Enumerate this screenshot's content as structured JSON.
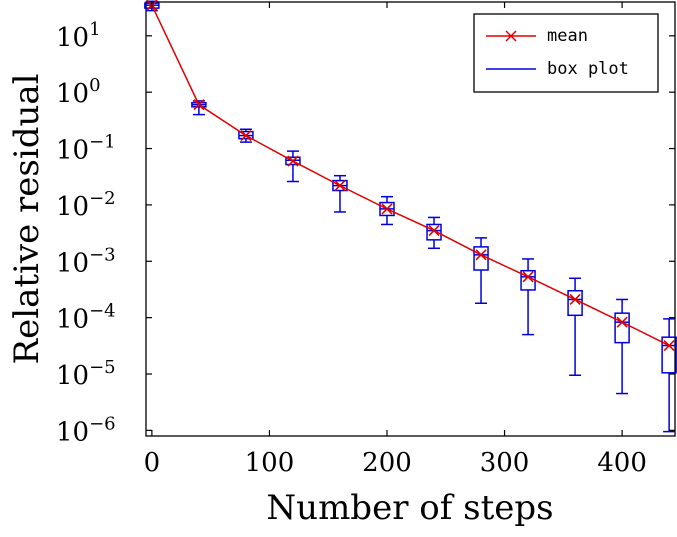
{
  "chart_data": {
    "type": "box",
    "xlabel": "Number of steps",
    "ylabel": "Relative residual",
    "xlim": [
      -5,
      445
    ],
    "ylim_log10": [
      -6.1,
      1.6
    ],
    "yscale": "log",
    "x_ticks": [
      0,
      100,
      200,
      300,
      400
    ],
    "y_ticks": [
      {
        "base": "10",
        "exp": "1"
      },
      {
        "base": "10",
        "exp": "0"
      },
      {
        "base": "10",
        "exp": "−1"
      },
      {
        "base": "10",
        "exp": "−2"
      },
      {
        "base": "10",
        "exp": "−3"
      },
      {
        "base": "10",
        "exp": "−4"
      },
      {
        "base": "10",
        "exp": "−5"
      },
      {
        "base": "10",
        "exp": "−6"
      }
    ],
    "legend_placement": "top-right",
    "legend": [
      {
        "label": "mean",
        "color": "#e00000",
        "marker": "x"
      },
      {
        "label": "box plot",
        "color": "#0000dd",
        "marker": "line"
      }
    ],
    "series": [
      {
        "name": "mean",
        "color": "#e00000",
        "x": [
          0,
          40,
          80,
          120,
          160,
          200,
          240,
          280,
          320,
          360,
          400,
          440
        ],
        "values": [
          35,
          0.6,
          0.17,
          0.06,
          0.022,
          0.0085,
          0.0035,
          0.0013,
          0.00053,
          0.00021,
          8.3e-05,
          3.2e-05
        ]
      },
      {
        "name": "box plot",
        "color": "#0000dd",
        "boxes": [
          {
            "x": 0,
            "min": 28,
            "q1": 31,
            "median": 35,
            "q3": 38,
            "max": 41
          },
          {
            "x": 40,
            "min": 0.4,
            "q1": 0.55,
            "median": 0.6,
            "q3": 0.65,
            "max": 0.7
          },
          {
            "x": 80,
            "min": 0.13,
            "q1": 0.15,
            "median": 0.17,
            "q3": 0.2,
            "max": 0.22
          },
          {
            "x": 120,
            "min": 0.026,
            "q1": 0.052,
            "median": 0.062,
            "q3": 0.07,
            "max": 0.09
          },
          {
            "x": 160,
            "min": 0.0075,
            "q1": 0.018,
            "median": 0.022,
            "q3": 0.027,
            "max": 0.033
          },
          {
            "x": 200,
            "min": 0.0045,
            "q1": 0.0065,
            "median": 0.0085,
            "q3": 0.011,
            "max": 0.014
          },
          {
            "x": 240,
            "min": 0.0017,
            "q1": 0.0024,
            "median": 0.0035,
            "q3": 0.0045,
            "max": 0.006
          },
          {
            "x": 280,
            "min": 0.00018,
            "q1": 0.0007,
            "median": 0.0013,
            "q3": 0.0018,
            "max": 0.0026
          },
          {
            "x": 320,
            "min": 5e-05,
            "q1": 0.00031,
            "median": 0.00053,
            "q3": 0.00068,
            "max": 0.0011
          },
          {
            "x": 360,
            "min": 9.5e-06,
            "q1": 0.00011,
            "median": 0.00021,
            "q3": 0.0003,
            "max": 0.0005
          },
          {
            "x": 400,
            "min": 4.5e-06,
            "q1": 3.6e-05,
            "median": 8.3e-05,
            "q3": 0.00012,
            "max": 0.00021
          },
          {
            "x": 440,
            "min": 9.5e-07,
            "q1": 1.05e-05,
            "median": 3.2e-05,
            "q3": 4.5e-05,
            "max": 9.5e-05
          }
        ]
      }
    ]
  }
}
